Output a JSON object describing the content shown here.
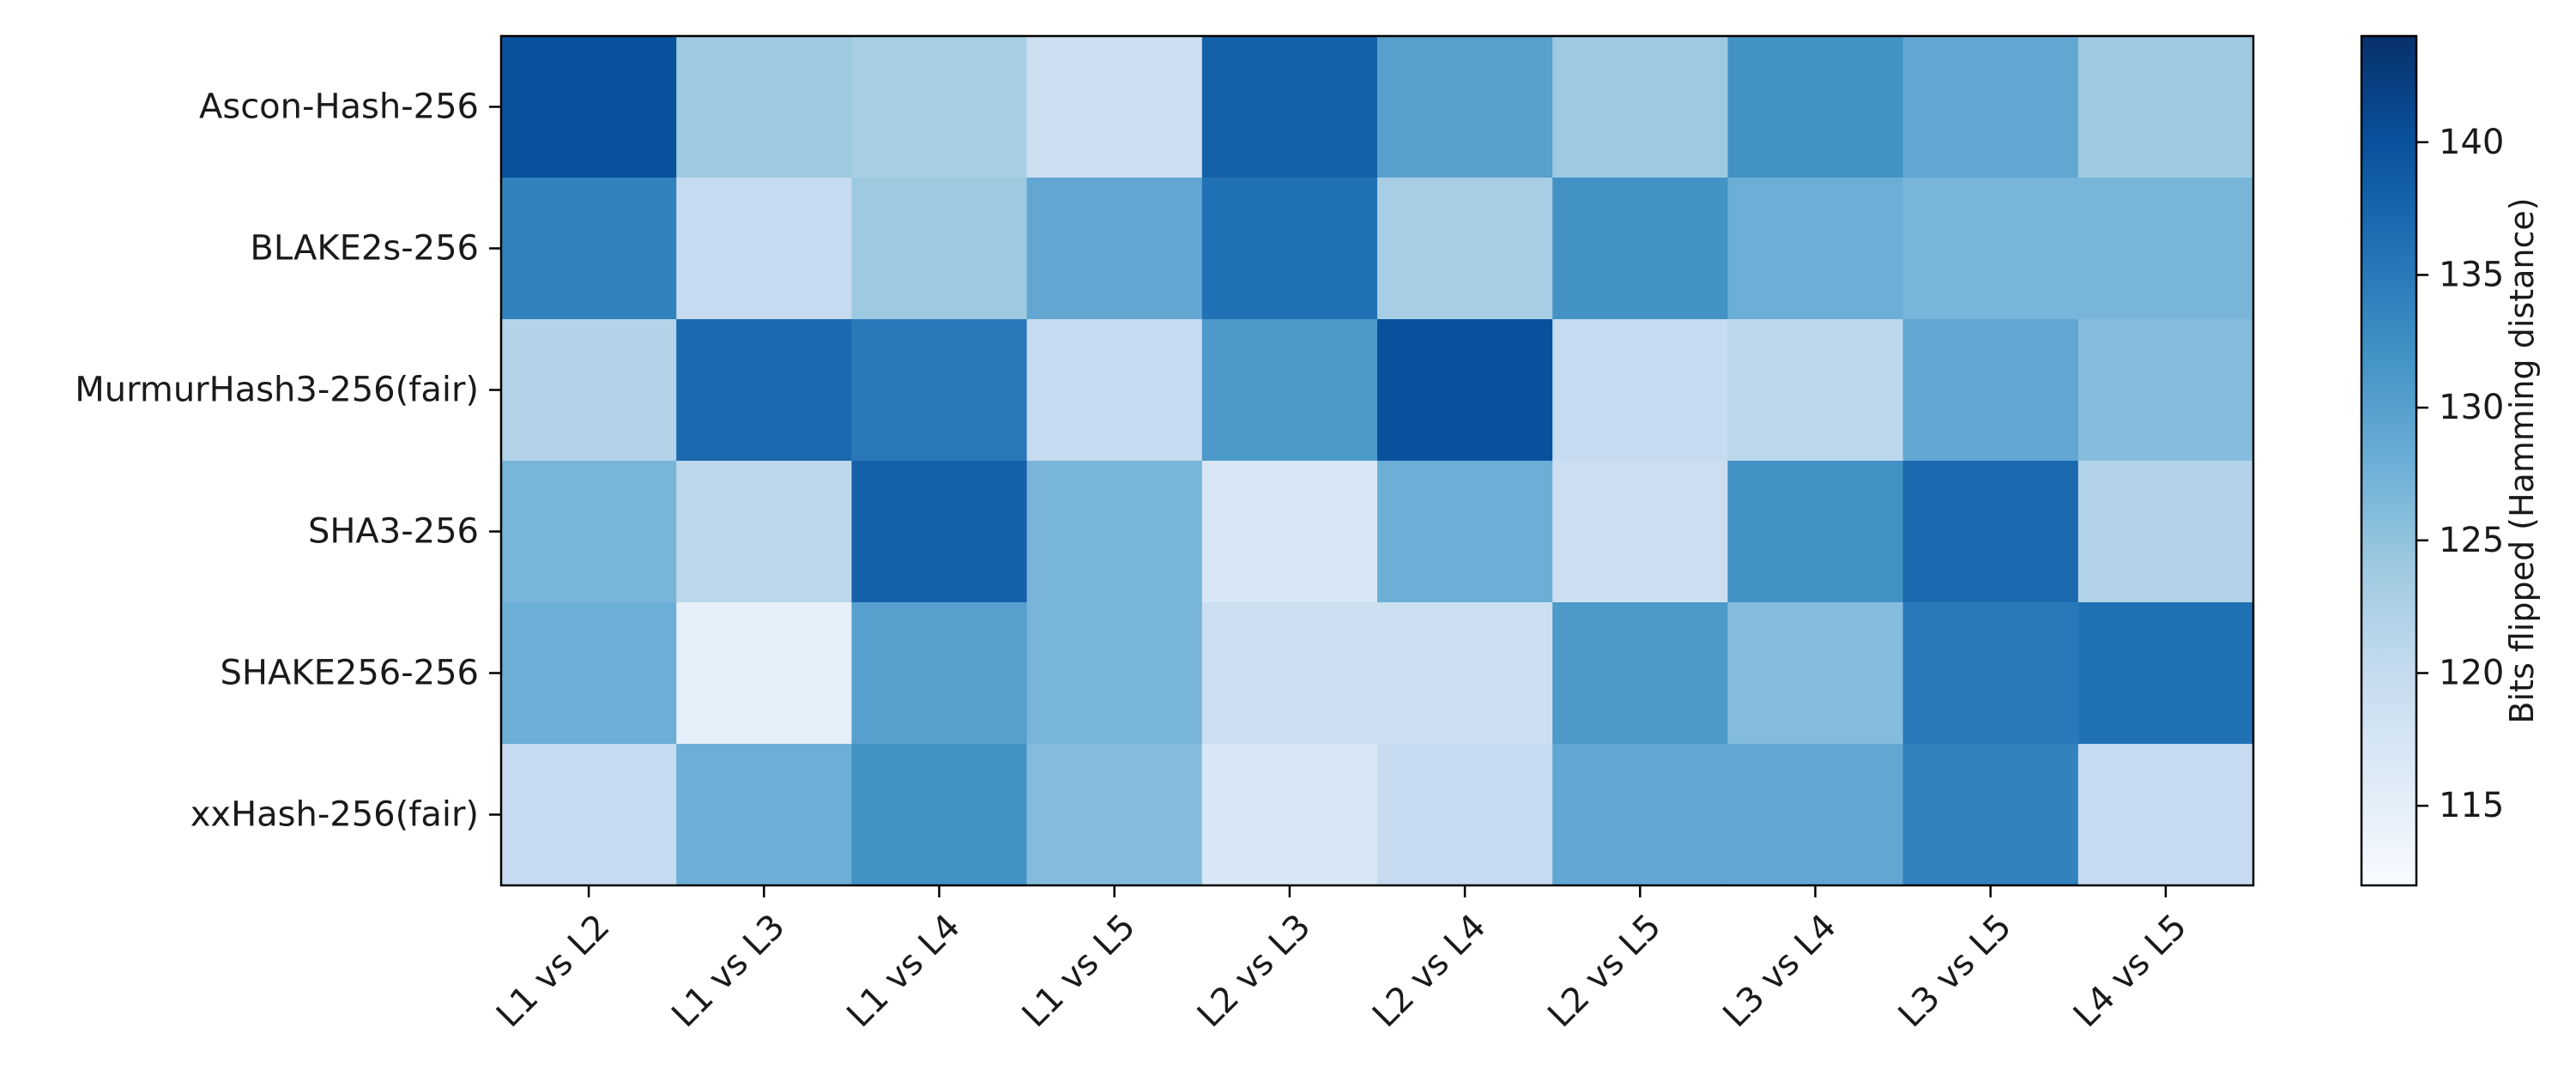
{
  "chart_data": {
    "type": "heatmap",
    "title": "",
    "xlabel": "",
    "ylabel": "",
    "rows": [
      "Ascon-Hash-256",
      "BLAKE2s-256",
      "MurmurHash3-256(fair)",
      "SHA3-256",
      "SHAKE256-256",
      "xxHash-256(fair)"
    ],
    "columns": [
      "L1 vs L2",
      "L1 vs L3",
      "L1 vs L4",
      "L1 vs L5",
      "L2 vs L3",
      "L2 vs L4",
      "L2 vs L5",
      "L3 vs L4",
      "L3 vs L5",
      "L4 vs L5"
    ],
    "values": [
      [
        140,
        124,
        123,
        119,
        138,
        130,
        124,
        132,
        129,
        124
      ],
      [
        134,
        120,
        124,
        129,
        136,
        123,
        132,
        128,
        127,
        127
      ],
      [
        122,
        137,
        135,
        120,
        131,
        140,
        120,
        121,
        129,
        126
      ],
      [
        127,
        121,
        138,
        127,
        117,
        128,
        119,
        132,
        137,
        122
      ],
      [
        128,
        115,
        130,
        127,
        119,
        119,
        131,
        126,
        135,
        136
      ],
      [
        120,
        128,
        132,
        126,
        117,
        120,
        129,
        129,
        134,
        120
      ]
    ],
    "colormap": "Blues",
    "colorbar": {
      "label": "Bits flipped (Hamming distance)",
      "range": [
        112,
        144
      ],
      "ticks": [
        "115",
        "120",
        "125",
        "130",
        "135",
        "140"
      ]
    }
  }
}
